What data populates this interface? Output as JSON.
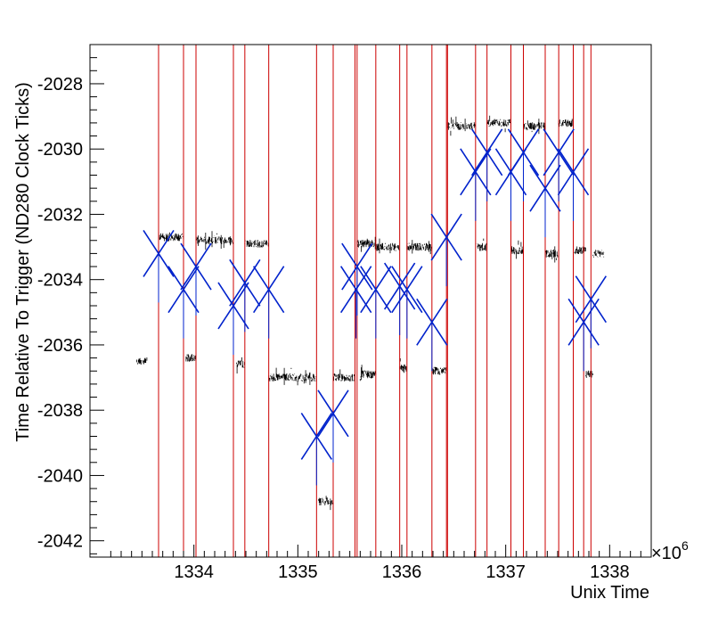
{
  "chart_data": {
    "type": "scatter",
    "title": "",
    "xlabel": "Unix Time",
    "ylabel": "Time Relative To Trigger (ND280 Clock Ticks)",
    "x_multiplier_label": "×10",
    "x_multiplier_exp": "6",
    "xlim": [
      1333.0,
      1338.4
    ],
    "ylim": [
      -2042.5,
      -2026.8
    ],
    "x_ticks": [
      1334,
      1335,
      1336,
      1337,
      1338
    ],
    "x_tick_labels": [
      "1334",
      "1335",
      "1336",
      "1337",
      "1338"
    ],
    "y_ticks": [
      -2028,
      -2030,
      -2032,
      -2034,
      -2036,
      -2038,
      -2040,
      -2042
    ],
    "y_tick_labels": [
      "-2028",
      "-2030",
      "-2032",
      "-2034",
      "-2036",
      "-2038",
      "-2040",
      "-2042"
    ],
    "grid": false,
    "colors": {
      "data": "#000000",
      "boundary": "#cc0000",
      "marker": "#0022cc"
    },
    "red_lines_x": [
      1333.66,
      1333.9,
      1334.02,
      1334.38,
      1334.49,
      1334.72,
      1335.18,
      1335.34,
      1335.55,
      1335.57,
      1335.75,
      1335.98,
      1336.05,
      1336.29,
      1336.43,
      1336.44,
      1336.71,
      1336.82,
      1337.05,
      1337.17,
      1337.38,
      1337.51,
      1337.65,
      1337.75,
      1337.82
    ],
    "segments": [
      {
        "x0": 1333.45,
        "x1": 1333.55,
        "y": -2036.5
      },
      {
        "x0": 1333.66,
        "x1": 1333.9,
        "y": -2032.7
      },
      {
        "x0": 1333.92,
        "x1": 1334.02,
        "y": -2036.4
      },
      {
        "x0": 1334.02,
        "x1": 1334.38,
        "y": -2032.8
      },
      {
        "x0": 1334.41,
        "x1": 1334.49,
        "y": -2036.6
      },
      {
        "x0": 1334.49,
        "x1": 1334.72,
        "y": -2032.9
      },
      {
        "x0": 1334.72,
        "x1": 1335.18,
        "y": -2037.0
      },
      {
        "x0": 1335.2,
        "x1": 1335.34,
        "y": -2040.8
      },
      {
        "x0": 1335.34,
        "x1": 1335.55,
        "y": -2037.0
      },
      {
        "x0": 1335.57,
        "x1": 1335.75,
        "y": -2032.9
      },
      {
        "x0": 1335.6,
        "x1": 1335.75,
        "y": -2036.9
      },
      {
        "x0": 1335.75,
        "x1": 1335.98,
        "y": -2033.0
      },
      {
        "x0": 1335.98,
        "x1": 1336.05,
        "y": -2036.7
      },
      {
        "x0": 1336.05,
        "x1": 1336.29,
        "y": -2033.0
      },
      {
        "x0": 1336.3,
        "x1": 1336.43,
        "y": -2036.8
      },
      {
        "x0": 1336.44,
        "x1": 1336.71,
        "y": -2029.3
      },
      {
        "x0": 1336.72,
        "x1": 1336.82,
        "y": -2033.0
      },
      {
        "x0": 1336.82,
        "x1": 1337.05,
        "y": -2029.2
      },
      {
        "x0": 1337.05,
        "x1": 1337.17,
        "y": -2033.1
      },
      {
        "x0": 1337.17,
        "x1": 1337.38,
        "y": -2029.3
      },
      {
        "x0": 1337.38,
        "x1": 1337.51,
        "y": -2033.2
      },
      {
        "x0": 1337.51,
        "x1": 1337.65,
        "y": -2029.2
      },
      {
        "x0": 1337.66,
        "x1": 1337.77,
        "y": -2033.1
      },
      {
        "x0": 1337.77,
        "x1": 1337.84,
        "y": -2036.9
      },
      {
        "x0": 1337.84,
        "x1": 1337.95,
        "y": -2033.2
      }
    ],
    "markers": [
      {
        "x": 1333.66,
        "y": -2033.2
      },
      {
        "x": 1333.9,
        "y": -2034.3
      },
      {
        "x": 1334.02,
        "y": -2033.6
      },
      {
        "x": 1334.38,
        "y": -2034.8
      },
      {
        "x": 1334.49,
        "y": -2034.1
      },
      {
        "x": 1334.72,
        "y": -2034.3
      },
      {
        "x": 1335.18,
        "y": -2038.8
      },
      {
        "x": 1335.34,
        "y": -2038.1
      },
      {
        "x": 1335.56,
        "y": -2034.3
      },
      {
        "x": 1335.57,
        "y": -2033.6
      },
      {
        "x": 1335.75,
        "y": -2034.3
      },
      {
        "x": 1335.98,
        "y": -2034.2
      },
      {
        "x": 1336.05,
        "y": -2034.3
      },
      {
        "x": 1336.29,
        "y": -2035.3
      },
      {
        "x": 1336.43,
        "y": -2032.7
      },
      {
        "x": 1336.71,
        "y": -2030.7
      },
      {
        "x": 1336.82,
        "y": -2030.1
      },
      {
        "x": 1337.05,
        "y": -2030.7
      },
      {
        "x": 1337.17,
        "y": -2030.1
      },
      {
        "x": 1337.38,
        "y": -2031.2
      },
      {
        "x": 1337.51,
        "y": -2030.1
      },
      {
        "x": 1337.65,
        "y": -2030.7
      },
      {
        "x": 1337.75,
        "y": -2035.3
      },
      {
        "x": 1337.82,
        "y": -2034.6
      }
    ]
  }
}
